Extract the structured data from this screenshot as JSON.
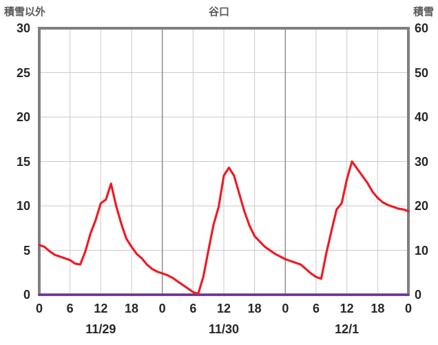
{
  "header": {
    "left_axis_title": "積雪以外",
    "chart_title": "谷口",
    "right_axis_title": "積雪"
  },
  "colors": {
    "frame": "#808080",
    "grid_minor": "#c9c9c9",
    "grid_day": "#8c8c8c",
    "tick_text": "#262626",
    "title_text": "#595959",
    "background": "#ffffff",
    "series_red": "#ed1c24",
    "series_purple": "#7030a0"
  },
  "chart_data": {
    "type": "line",
    "title": "谷口",
    "left_axis_title": "積雪以外",
    "right_axis_title": "積雪",
    "x_total_hours": 72,
    "x_tick_interval_hours": 6,
    "x_tick_labels": [
      "0",
      "6",
      "12",
      "18",
      "0",
      "6",
      "12",
      "18",
      "0",
      "6",
      "12",
      "18",
      "0"
    ],
    "date_labels": [
      {
        "label": "11/29",
        "center_hour": 12
      },
      {
        "label": "11/30",
        "center_hour": 36
      },
      {
        "label": "12/1",
        "center_hour": 60
      }
    ],
    "left_axis": {
      "min": 0,
      "max": 30,
      "ticks": [
        0,
        5,
        10,
        15,
        20,
        25,
        30
      ]
    },
    "right_axis": {
      "min": 0,
      "max": 60,
      "ticks": [
        0,
        10,
        20,
        30,
        40,
        50,
        60
      ]
    },
    "grid": true,
    "legend": "none",
    "series": [
      {
        "name": "積雪",
        "axis": "right",
        "color": "#7030a0",
        "values": [
          0,
          0,
          0,
          0,
          0,
          0,
          0,
          0,
          0,
          0,
          0,
          0,
          0,
          0,
          0,
          0,
          0,
          0,
          0,
          0,
          0,
          0,
          0,
          0,
          0,
          0,
          0,
          0,
          0,
          0,
          0,
          0,
          0,
          0,
          0,
          0,
          0,
          0,
          0,
          0,
          0,
          0,
          0,
          0,
          0,
          0,
          0,
          0,
          0,
          0,
          0,
          0,
          0,
          0,
          0,
          0,
          0,
          0,
          0,
          0,
          0,
          0,
          0,
          0,
          0,
          0,
          0,
          0,
          0,
          0,
          0,
          0,
          0
        ]
      },
      {
        "name": "積雪以外",
        "axis": "left",
        "color": "#ed1c24",
        "values": [
          5.6,
          5.4,
          4.9,
          4.5,
          4.3,
          4.1,
          3.9,
          3.5,
          3.4,
          4.9,
          6.9,
          8.4,
          10.3,
          10.7,
          12.5,
          10.0,
          8.0,
          6.3,
          5.4,
          4.6,
          4.1,
          3.4,
          2.9,
          2.6,
          2.4,
          2.2,
          1.9,
          1.5,
          1.1,
          0.7,
          0.3,
          0.1,
          2.0,
          5.0,
          7.9,
          9.9,
          13.4,
          14.3,
          13.4,
          11.4,
          9.4,
          7.8,
          6.6,
          6.0,
          5.4,
          5.0,
          4.6,
          4.3,
          4.0,
          3.8,
          3.6,
          3.4,
          2.9,
          2.4,
          2.0,
          1.8,
          4.7,
          7.2,
          9.6,
          10.3,
          13.0,
          15.0,
          14.2,
          13.4,
          12.6,
          11.6,
          10.9,
          10.4,
          10.1,
          9.9,
          9.7,
          9.6,
          9.4
        ]
      }
    ]
  }
}
